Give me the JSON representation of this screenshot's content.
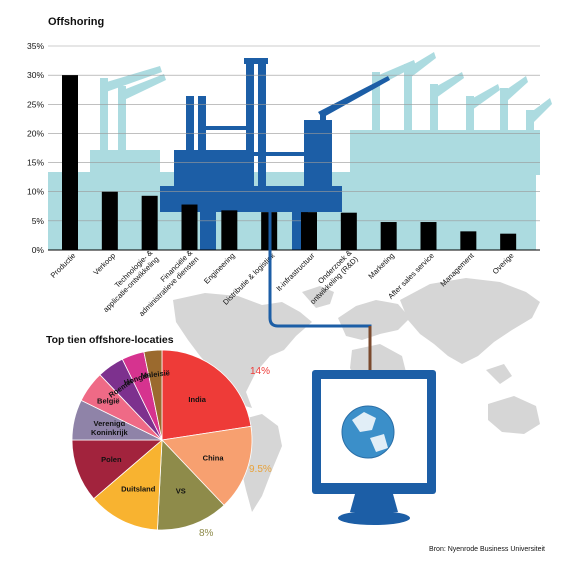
{
  "bar_chart": {
    "type": "bar",
    "title": "Offshoring",
    "categories": [
      "Productie",
      "Verkoop",
      "Technologie- & applicatie-ontwikkeling",
      "Financiële & administratieve diensten",
      "Engineering",
      "Distributie & logistiek",
      "It-infrastructuur",
      "Onderzoek & ontwikkeling (R&D)",
      "Marketing",
      "After sales service",
      "Management",
      "Overige"
    ],
    "category_lines": [
      [
        "Productie"
      ],
      [
        "Verkoop"
      ],
      [
        "Technologie- &",
        "applicatie-ontwikkeling"
      ],
      [
        "Financiële &",
        "administratieve diensten"
      ],
      [
        "Engineering"
      ],
      [
        "Distributie & logistiek"
      ],
      [
        "It-infrastructuur"
      ],
      [
        "Onderzoek &",
        "ontwikkeling (R&D)"
      ],
      [
        "Marketing"
      ],
      [
        "After sales service"
      ],
      [
        "Management"
      ],
      [
        "Overige"
      ]
    ],
    "values": [
      30,
      10,
      9.3,
      7.8,
      6.8,
      6.5,
      6.5,
      6.4,
      4.8,
      4.8,
      3.2,
      2.8
    ],
    "ylim": [
      0,
      35
    ],
    "yticks": [
      "0%",
      "5%",
      "10%",
      "15%",
      "20%",
      "25%",
      "30%",
      "35%"
    ],
    "grid": true,
    "bar_color": "#000000"
  },
  "pie_chart": {
    "type": "pie",
    "title": "Top tien offshore-locaties",
    "slices": [
      {
        "label": [
          "India"
        ],
        "value": 14,
        "color": "#ee3b38"
      },
      {
        "label": [
          "China"
        ],
        "value": 9.5,
        "color": "#f7a070"
      },
      {
        "label": [
          "VS"
        ],
        "value": 8,
        "color": "#8e8b4a"
      },
      {
        "label": [
          "Duitsland"
        ],
        "value": 8,
        "color": "#f8b330"
      },
      {
        "label": [
          "Polen"
        ],
        "value": 7,
        "color": "#a2233d"
      },
      {
        "label": [
          "Verenigd",
          "Koninkrijk"
        ],
        "value": 4.5,
        "color": "#8f83a8"
      },
      {
        "label": [
          "België"
        ],
        "value": 3.5,
        "color": "#ef6a86"
      },
      {
        "label": [
          "Roemenië"
        ],
        "value": 3,
        "color": "#7d318e"
      },
      {
        "label": [
          "Hongarije"
        ],
        "value": 2.5,
        "color": "#d6338f"
      },
      {
        "label": [
          "Maleisië"
        ],
        "value": 2,
        "color": "#9b6a2e"
      }
    ],
    "annotations": [
      {
        "text": "14%",
        "color": "#ee3b38"
      },
      {
        "text": "9.5%",
        "color": "#e8a23a"
      },
      {
        "text": "8%",
        "color": "#8e8b4a"
      }
    ]
  },
  "illustration": {
    "background_color": "#acdbe0",
    "industrial_color": "#1c5ea6",
    "world_map_color": "#d6d6d6",
    "monitor_color": "#1c5ea6",
    "cable_color": "#7b4a2e"
  },
  "source": "Bron: Nyenrode Business Universiteit"
}
